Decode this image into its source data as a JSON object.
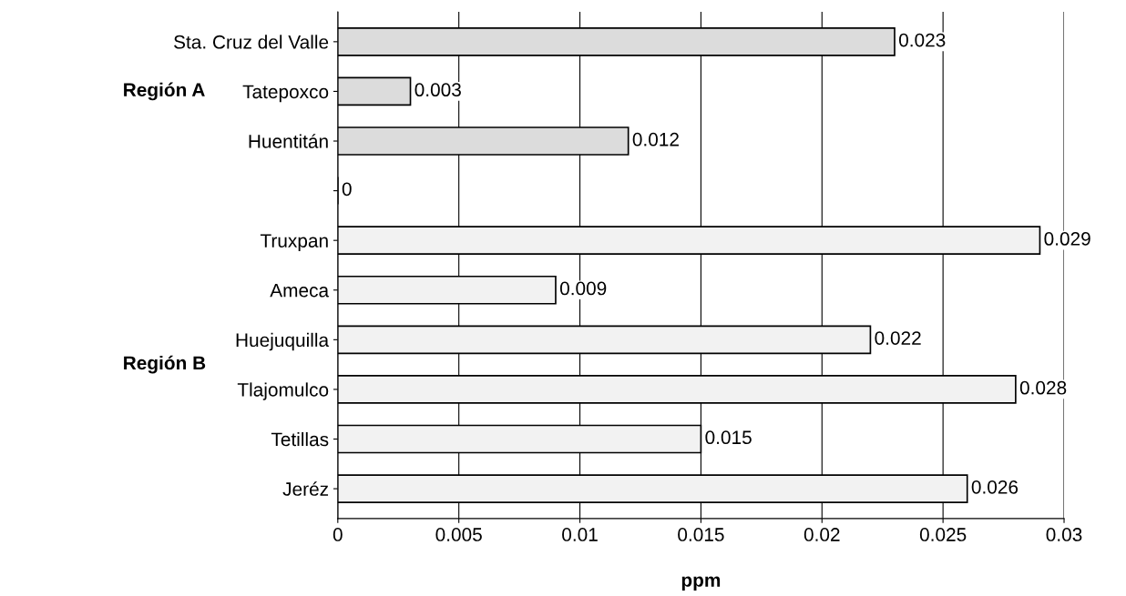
{
  "chart_data": {
    "type": "bar",
    "orientation": "horizontal",
    "xlabel": "ppm",
    "categories": [
      "Sta. Cruz del Valle",
      "Tatepoxco",
      "Huentitán",
      null,
      "Truxpan",
      "Ameca",
      "Huejuquilla",
      "Tlajomulco",
      "Tetillas",
      "Jeréz"
    ],
    "values": [
      0.023,
      0.003,
      0.012,
      0,
      0.029,
      0.009,
      0.022,
      0.028,
      0.015,
      0.026
    ],
    "colors": [
      "#dcdcdc",
      "#dcdcdc",
      "#dcdcdc",
      "#000000",
      "#f2f2f2",
      "#f2f2f2",
      "#f2f2f2",
      "#f2f2f2",
      "#f2f2f2",
      "#f2f2f2"
    ],
    "xlim": [
      0,
      0.03
    ],
    "xticks": [
      0,
      0.005,
      0.01,
      0.015,
      0.02,
      0.025,
      0.03
    ],
    "grid": "x",
    "data_labels": true,
    "annotations": [
      "Región A",
      "Región B"
    ]
  }
}
